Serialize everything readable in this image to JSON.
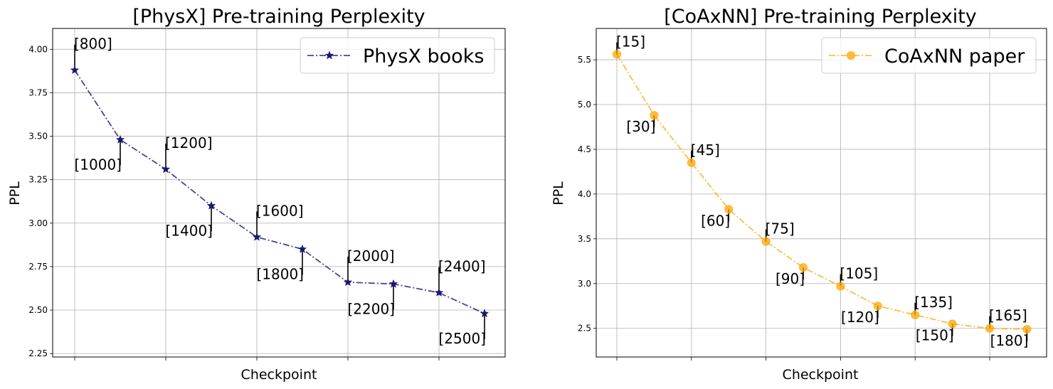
{
  "chart_data": [
    {
      "type": "line",
      "title": "[PhysX] Pre-training Perplexity",
      "xlabel": "Checkpoint",
      "ylabel": "PPL",
      "categories": [
        "[800]",
        "[1000]",
        "[1200]",
        "[1400]",
        "[1600]",
        "[1800]",
        "[2000]",
        "[2200]",
        "[2400]",
        "[2500]"
      ],
      "series": [
        {
          "name": "PhysX books",
          "values": [
            3.88,
            3.48,
            3.31,
            3.1,
            2.92,
            2.85,
            2.66,
            2.65,
            2.6,
            2.48
          ]
        }
      ],
      "ylim": [
        2.23,
        4.12
      ],
      "yticks": [
        "2.25",
        "2.50",
        "2.75",
        "3.00",
        "3.25",
        "3.50",
        "3.75",
        "4.00"
      ],
      "grid": true,
      "legend": "upper right",
      "color": "#191970",
      "marker": "star",
      "linestyle": "dash-dot"
    },
    {
      "type": "line",
      "title": "[CoAxNN] Pre-training Perplexity",
      "xlabel": "Checkpoint",
      "ylabel": "PPL",
      "categories": [
        "[15]",
        "[30]",
        "[45]",
        "[60]",
        "[75]",
        "[90]",
        "[105]",
        "[120]",
        "[135]",
        "[150]",
        "[165]",
        "[180]"
      ],
      "series": [
        {
          "name": "CoAxNN paper",
          "values": [
            5.56,
            4.88,
            4.35,
            3.83,
            3.47,
            3.18,
            2.97,
            2.75,
            2.65,
            2.55,
            2.5,
            2.49
          ]
        }
      ],
      "ylim": [
        2.18,
        5.85
      ],
      "yticks": [
        "2.5",
        "3.0",
        "3.5",
        "4.0",
        "4.5",
        "5.0",
        "5.5"
      ],
      "grid": true,
      "legend": "upper right",
      "color": "#FFA500",
      "marker": "circle",
      "linestyle": "dash-dot"
    }
  ]
}
